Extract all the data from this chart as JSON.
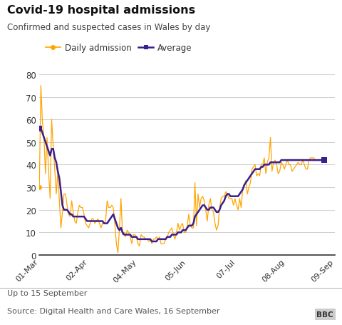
{
  "title": "Covid-19 hospital admissions",
  "subtitle": "Confirmed and suspected cases in Wales by day",
  "footer1": "Up to 15 September",
  "footer2": "Source: Digital Health and Care Wales, 16 September",
  "daily_color": "#FFA500",
  "average_color": "#3B1F8C",
  "background_color": "#ffffff",
  "ylim": [
    0,
    80
  ],
  "yticks": [
    0,
    10,
    20,
    30,
    40,
    50,
    60,
    70,
    80
  ],
  "tick_labels": [
    "01-Mar",
    "02-Apr",
    "04-May",
    "05-Jun",
    "07-Jul",
    "08-Aug",
    "09-Sep"
  ],
  "tick_day_offsets": [
    0,
    32,
    64,
    96,
    128,
    160,
    192
  ],
  "daily_values": [
    30,
    75,
    59,
    52,
    36,
    52,
    37,
    25,
    60,
    48,
    38,
    27,
    37,
    24,
    12,
    19,
    27,
    27,
    22,
    18,
    17,
    24,
    19,
    15,
    14,
    19,
    22,
    21,
    21,
    18,
    14,
    13,
    12,
    14,
    16,
    16,
    14,
    15,
    16,
    14,
    12,
    14,
    14,
    15,
    24,
    21,
    21,
    22,
    21,
    14,
    5,
    1,
    12,
    25,
    9,
    10,
    8,
    11,
    10,
    8,
    5,
    9,
    9,
    8,
    5,
    4,
    9,
    8,
    8,
    7,
    7,
    6,
    7,
    5,
    7,
    7,
    8,
    7,
    8,
    5,
    5,
    5,
    7,
    8,
    10,
    11,
    12,
    9,
    7,
    10,
    14,
    11,
    13,
    14,
    10,
    10,
    13,
    18,
    13,
    12,
    12,
    32,
    13,
    27,
    21,
    25,
    26,
    24,
    20,
    15,
    22,
    25,
    20,
    19,
    14,
    11,
    13,
    21,
    25,
    26,
    26,
    28,
    27,
    25,
    25,
    25,
    22,
    25,
    22,
    20,
    25,
    21,
    29,
    30,
    33,
    27,
    30,
    32,
    38,
    39,
    40,
    35,
    36,
    35,
    40,
    40,
    43,
    36,
    41,
    43,
    52,
    37,
    41,
    42,
    40,
    36,
    37,
    41,
    40,
    38,
    40,
    42,
    40,
    40,
    37,
    38,
    39,
    40,
    41,
    40,
    40,
    42,
    40,
    38,
    38,
    42,
    43,
    43,
    43,
    42,
    42,
    42,
    42,
    42,
    43,
    43
  ],
  "average_values": [
    56,
    56,
    54,
    52,
    50,
    48,
    46,
    44,
    47,
    47,
    43,
    41,
    37,
    34,
    28,
    22,
    20,
    20,
    20,
    19,
    18,
    18,
    17,
    17,
    17,
    17,
    17,
    17,
    17,
    17,
    16,
    15,
    15,
    15,
    15,
    15,
    15,
    15,
    15,
    15,
    15,
    15,
    14,
    14,
    14,
    15,
    16,
    17,
    18,
    16,
    14,
    12,
    11,
    12,
    10,
    9,
    9,
    9,
    9,
    9,
    8,
    8,
    8,
    8,
    7,
    7,
    7,
    7,
    7,
    7,
    7,
    7,
    7,
    6,
    6,
    6,
    6,
    7,
    7,
    7,
    7,
    7,
    7,
    8,
    8,
    8,
    9,
    9,
    9,
    9,
    10,
    10,
    10,
    11,
    11,
    11,
    12,
    13,
    13,
    13,
    14,
    17,
    18,
    19,
    20,
    21,
    22,
    22,
    21,
    20,
    20,
    21,
    21,
    21,
    20,
    19,
    19,
    20,
    22,
    23,
    24,
    26,
    27,
    27,
    26,
    26,
    26,
    26,
    26,
    26,
    27,
    28,
    29,
    31,
    32,
    33,
    34,
    35,
    36,
    37,
    38,
    38,
    38,
    38,
    39,
    39,
    40,
    40,
    40,
    40,
    41,
    41,
    41,
    41,
    41,
    41,
    41,
    42,
    42,
    42,
    42,
    42,
    42,
    42,
    42,
    42,
    42,
    42,
    42,
    42,
    42,
    42,
    42,
    42,
    42,
    42,
    42,
    42,
    42,
    42,
    42,
    42,
    42,
    42,
    42,
    42
  ]
}
